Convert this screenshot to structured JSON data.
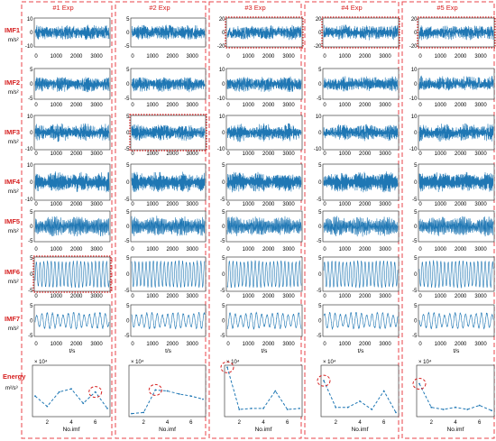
{
  "figure": {
    "columns": [
      {
        "title": "#1 Exp"
      },
      {
        "title": "#2 Exp"
      },
      {
        "title": "#3 Exp"
      },
      {
        "title": "#4 Exp"
      },
      {
        "title": "#5 Exp"
      }
    ],
    "rows": [
      {
        "label": "IMF1",
        "unit": "m/s²",
        "yticks": [
          [
            "10",
            "0",
            "-10"
          ],
          [
            "5",
            "0",
            "-5"
          ],
          [
            "20",
            "0",
            "-20"
          ],
          [
            "20",
            "0",
            "-20"
          ],
          [
            "20",
            "0",
            "-20"
          ]
        ]
      },
      {
        "label": "IMF2",
        "unit": "m/s²",
        "yticks": [
          [
            "5",
            "0",
            "-5"
          ],
          [
            "5",
            "0",
            "-5"
          ],
          [
            "10",
            "0",
            "-10"
          ],
          [
            "5",
            "0",
            "-5"
          ],
          [
            "10",
            "0",
            "-10"
          ]
        ]
      },
      {
        "label": "IMF3",
        "unit": "m/s²",
        "yticks": [
          [
            "10",
            "0",
            "-10"
          ],
          [
            "5",
            "0",
            "-5"
          ],
          [
            "10",
            "0",
            "-10"
          ],
          [
            "10",
            "0",
            "-10"
          ],
          [
            "10",
            "0",
            "-10"
          ]
        ]
      },
      {
        "label": "IMF4",
        "unit": "m/s²",
        "yticks": [
          [
            "10",
            "0",
            "-10"
          ],
          [
            "5",
            "0",
            "-5"
          ],
          [
            "5",
            "0",
            "-5"
          ],
          [
            "5",
            "0",
            "-5"
          ],
          [
            "5",
            "0",
            "-5"
          ]
        ]
      },
      {
        "label": "IMF5",
        "unit": "m/s²",
        "yticks": [
          [
            "5",
            "0",
            "-5"
          ],
          [
            "5",
            "0",
            "-5"
          ],
          [
            "5",
            "0",
            "-5"
          ],
          [
            "5",
            "0",
            "-5"
          ],
          [
            "5",
            "0",
            "-5"
          ]
        ]
      },
      {
        "label": "IMF6",
        "unit": "m/s²",
        "yticks": [
          [
            "5",
            "0",
            "-5"
          ],
          [
            "5",
            "0",
            "-5"
          ],
          [
            "5",
            "0",
            "-5"
          ],
          [
            "5",
            "0",
            "-5"
          ],
          [
            "5",
            "0",
            "-5"
          ]
        ]
      },
      {
        "label": "IMF7",
        "unit": "m/s²",
        "yticks": [
          [
            "5",
            "0",
            "-5"
          ],
          [
            "5",
            "0",
            "-5"
          ],
          [
            "5",
            "0",
            "-5"
          ],
          [
            "5",
            "0",
            "-5"
          ],
          [
            "5",
            "0",
            "-5"
          ]
        ]
      }
    ],
    "x_ticks": [
      "0",
      "1000",
      "2000",
      "3000"
    ],
    "x_label": "t/s",
    "energy": {
      "label": "Energy",
      "unit": "m²/s³",
      "scale": "× 10⁴",
      "x_label": "No.imf",
      "x_ticks": [
        "2",
        "4",
        "6"
      ]
    },
    "highlights": {
      "subplots": [
        [
          0,
          2
        ],
        [
          0,
          3
        ],
        [
          0,
          4
        ],
        [
          2,
          1
        ],
        [
          5,
          0
        ]
      ],
      "energy_peaks": [
        5,
        2,
        0,
        0,
        0
      ]
    }
  },
  "colors": {
    "signal": "#1f77b4",
    "frame_dash": "#e8434a",
    "highlight": "#d62020",
    "label": "#d62020"
  },
  "chart_data": {
    "type": "line",
    "title": "",
    "xlabel": "No.imf",
    "ylabel": "Energy (m²/s³, × 10⁴)",
    "categories": [
      1,
      2,
      3,
      4,
      5,
      6,
      7
    ],
    "series": [
      {
        "values": [
          2.0,
          1.0,
          2.4,
          2.7,
          1.3,
          2.4,
          0.8
        ]
      },
      {
        "values": [
          0.3,
          0.4,
          2.6,
          2.5,
          2.2,
          2.0,
          1.7
        ]
      },
      {
        "values": [
          4.8,
          0.7,
          0.8,
          0.8,
          2.5,
          0.7,
          0.8
        ]
      },
      {
        "values": [
          3.5,
          0.9,
          0.9,
          1.5,
          0.7,
          2.5,
          0.4
        ]
      },
      {
        "values": [
          3.2,
          0.9,
          0.7,
          0.9,
          0.7,
          1.1,
          0.6
        ]
      }
    ]
  }
}
